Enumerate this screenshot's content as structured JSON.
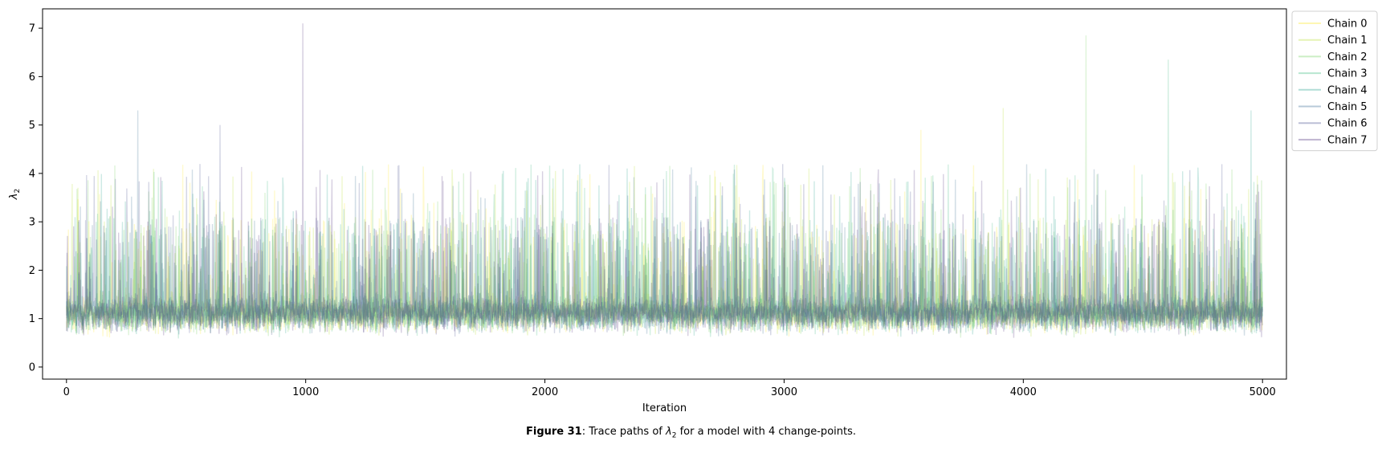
{
  "caption": {
    "figure_label": "Figure 31",
    "text_before": ": Trace paths of ",
    "symbol_base": "λ",
    "symbol_sub": "2",
    "text_after": " for a model with 4 change-points."
  },
  "chart_data": {
    "type": "line",
    "title": "",
    "xlabel": "Iteration",
    "ylabel_base": "λ",
    "ylabel_sub": "2",
    "xlim": [
      -100,
      5100
    ],
    "ylim": [
      -0.25,
      7.4
    ],
    "x_ticks": [
      0,
      1000,
      2000,
      3000,
      4000,
      5000
    ],
    "y_ticks": [
      0,
      1,
      2,
      3,
      4,
      5,
      6,
      7
    ],
    "n_iterations": 5000,
    "grid": false,
    "legend_placement": "outside-top-right",
    "series": [
      {
        "name": "Chain 0",
        "color": "#fde725",
        "typical_level": 1.1,
        "max": 4.9
      },
      {
        "name": "Chain 1",
        "color": "#b5de2b",
        "typical_level": 1.1,
        "max": 5.35
      },
      {
        "name": "Chain 2",
        "color": "#6ece58",
        "typical_level": 1.1,
        "max": 6.85
      },
      {
        "name": "Chain 3",
        "color": "#35b779",
        "typical_level": 1.1,
        "max": 6.35
      },
      {
        "name": "Chain 4",
        "color": "#1f9e89",
        "typical_level": 1.1,
        "max": 5.3
      },
      {
        "name": "Chain 5",
        "color": "#31688e",
        "typical_level": 1.1,
        "max": 5.3
      },
      {
        "name": "Chain 6",
        "color": "#3e4989",
        "typical_level": 1.1,
        "max": 5.0
      },
      {
        "name": "Chain 7",
        "color": "#482878",
        "typical_level": 1.1,
        "max": 7.1
      }
    ]
  }
}
